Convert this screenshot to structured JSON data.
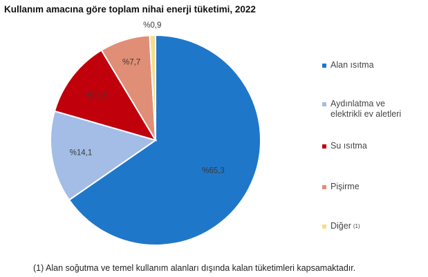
{
  "chart_data": {
    "type": "pie",
    "title": "Kullanım amacına göre toplam nihai enerji tüketimi, 2022",
    "slices": [
      {
        "name": "Alan ısıtma",
        "value": 65.3,
        "label": "%65,3",
        "color": "#1f77c9"
      },
      {
        "name": "Aydınlatma ve elektrikli ev aletleri",
        "value": 14.1,
        "label": "%14,1",
        "color": "#a3bde6"
      },
      {
        "name": "Su ısıtma",
        "value": 11.9,
        "label": "%11,9",
        "color": "#c0000b"
      },
      {
        "name": "Pişirme",
        "value": 7.7,
        "label": "%7,7",
        "color": "#e08e75"
      },
      {
        "name": "Diğer",
        "value": 0.9,
        "label": "%0,9",
        "color": "#f7dc8a"
      }
    ],
    "legend_placement": "right"
  },
  "legend": {
    "items": [
      {
        "text": "Alan ısıtma",
        "color": "#1f77c9"
      },
      {
        "text": "Aydınlatma ve\nelektrikli ev aletleri",
        "color": "#a3bde6"
      },
      {
        "text": "Su ısıtma",
        "color": "#c0000b"
      },
      {
        "text": "Pişirme",
        "color": "#e08e75"
      },
      {
        "text": "Diğer",
        "color": "#f7dc8a",
        "sup": "(1)"
      }
    ]
  },
  "footnote": "(1) Alan soğutma ve temel kullanım alanları dışında kalan tüketimleri kapsamaktadır."
}
